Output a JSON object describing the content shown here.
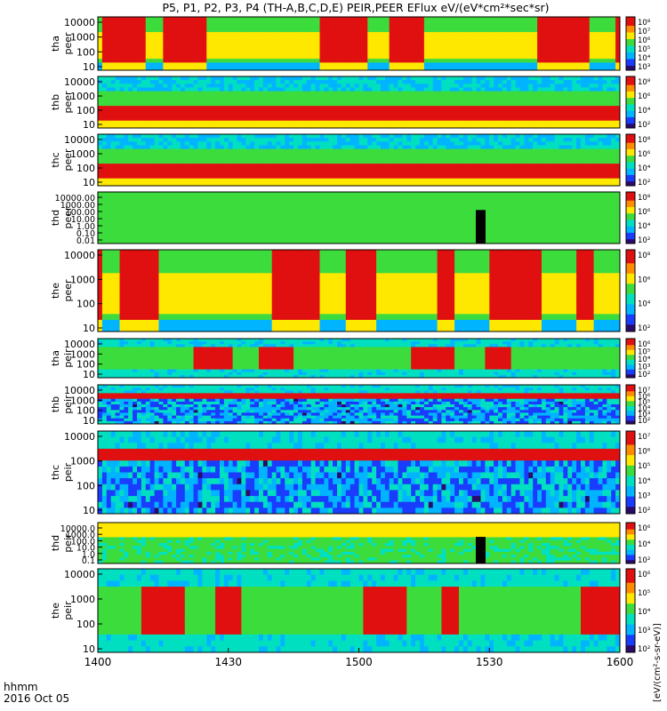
{
  "chart_data": {
    "type": "heatmap",
    "title": "P5, P1, P2, P3, P4 (TH-A,B,C,D,E) PEIR,PEER EFlux eV/(eV*cm²*sec*sr)",
    "x_tick_labels": [
      "1400",
      "1430",
      "1500",
      "1530",
      "1600"
    ],
    "x_label_line1": "hhmm",
    "x_label_line2": "2016 Oct 05",
    "colorbar_label": "[eV/(cm²-s-sr-eV)]",
    "colormap": [
      "#2a0a6a",
      "#1a3cff",
      "#00b4ff",
      "#00e0c0",
      "#3ddc3d",
      "#ffe800",
      "#ff8c00",
      "#e01010"
    ],
    "panels": [
      {
        "probe": "tha",
        "species": "peer",
        "ylabel1": "tha",
        "ylabel2": "peer",
        "y_ticks": [
          "10000",
          "1000",
          "100",
          "10"
        ],
        "cbar_ticks": [
          "10⁸",
          "10⁷",
          "10⁶",
          "10⁵",
          "10⁴",
          "10³"
        ],
        "style": "eburst"
      },
      {
        "probe": "thb",
        "species": "peer",
        "ylabel1": "thb",
        "ylabel2": "peer",
        "y_ticks": [
          "10000",
          "1000",
          "100",
          "10"
        ],
        "cbar_ticks": [
          "10⁸",
          "10⁶",
          "10⁴",
          "10²"
        ],
        "style": "quiet"
      },
      {
        "probe": "thc",
        "species": "peer",
        "ylabel1": "thc",
        "ylabel2": "peer",
        "y_ticks": [
          "10000",
          "1000",
          "100",
          "10"
        ],
        "cbar_ticks": [
          "10⁸",
          "10⁶",
          "10⁴",
          "10²"
        ],
        "style": "quiet"
      },
      {
        "probe": "thd",
        "species": "peer",
        "ylabel1": "thd",
        "ylabel2": "peer",
        "y_ticks": [
          "10000.00",
          "1000.00",
          "100.00",
          "10.00",
          "1.00",
          "0.10",
          "0.01"
        ],
        "cbar_ticks": [
          "10⁸",
          "10⁶",
          "10⁴",
          "10²"
        ],
        "style": "thdE"
      },
      {
        "probe": "the",
        "species": "peer",
        "ylabel1": "the",
        "ylabel2": "peer",
        "y_ticks": [
          "10000",
          "1000",
          "100",
          "10"
        ],
        "cbar_ticks": [
          "10⁸",
          "10⁶",
          "10⁴",
          "10²"
        ],
        "style": "eburst"
      },
      {
        "probe": "tha",
        "species": "peir",
        "ylabel1": "tha",
        "ylabel2": "peir",
        "y_ticks": [
          "10000",
          "1000",
          "100",
          "10"
        ],
        "cbar_ticks": [
          "10⁶",
          "10⁵",
          "10⁴",
          "10³",
          "10²"
        ],
        "style": "ion"
      },
      {
        "probe": "thb",
        "species": "peir",
        "ylabel1": "thb",
        "ylabel2": "peir",
        "y_ticks": [
          "10000",
          "1000",
          "100",
          "10"
        ],
        "cbar_ticks": [
          "10⁷",
          "10⁶",
          "10⁵",
          "10⁴",
          "10³",
          "10²"
        ],
        "style": "band"
      },
      {
        "probe": "thc",
        "species": "peir",
        "ylabel1": "thc",
        "ylabel2": "peir",
        "y_ticks": [
          "10000",
          "1000",
          "100",
          "10"
        ],
        "cbar_ticks": [
          "10⁷",
          "10⁶",
          "10⁵",
          "10⁴",
          "10³",
          "10²"
        ],
        "style": "band"
      },
      {
        "probe": "thd",
        "species": "peir",
        "ylabel1": "thd",
        "ylabel2": "peir",
        "y_ticks": [
          "10000.0",
          "1000.0",
          "100.0",
          "10.0",
          "1.0",
          "0.1"
        ],
        "cbar_ticks": [
          "10⁶",
          "10⁴",
          "10²"
        ],
        "style": "thdI"
      },
      {
        "probe": "the",
        "species": "peir",
        "ylabel1": "the",
        "ylabel2": "peir",
        "y_ticks": [
          "10000",
          "1000",
          "100",
          "10"
        ],
        "cbar_ticks": [
          "10⁶",
          "10⁵",
          "10⁴",
          "10³",
          "10²"
        ],
        "style": "ion"
      }
    ]
  }
}
